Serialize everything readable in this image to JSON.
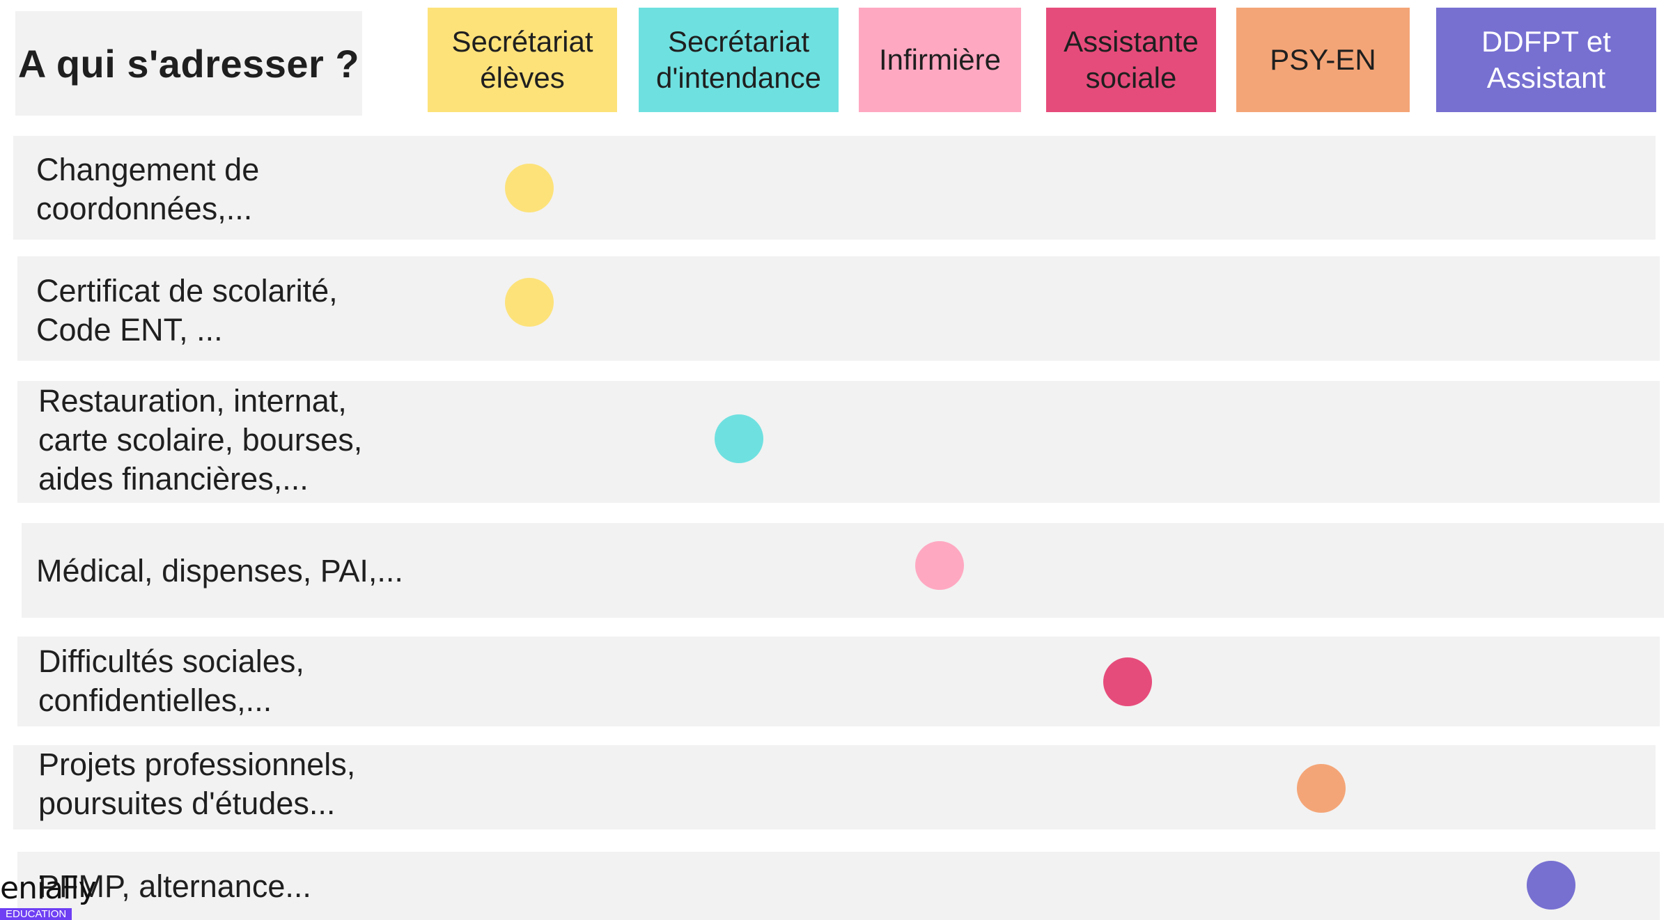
{
  "title": "A qui s'adresser ?",
  "columns": [
    {
      "label": "Secrétariat\nélèves",
      "color": "#fde27a",
      "text_color": "#1f1f1f"
    },
    {
      "label": "Secrétariat\nd'intendance",
      "color": "#6fe0e0",
      "text_color": "#1f1f1f"
    },
    {
      "label": "Infirmière",
      "color": "#ffa8c2",
      "text_color": "#1f1f1f"
    },
    {
      "label": "Assistante\nsociale",
      "color": "#e64c7b",
      "text_color": "#1f1f1f"
    },
    {
      "label": "PSY-EN",
      "color": "#f4a577",
      "text_color": "#1f1f1f"
    },
    {
      "label": "DDFPT et\nAssistant",
      "color": "#7770d1",
      "text_color": "#ffffff"
    }
  ],
  "rows": [
    {
      "label": "Changement de\ncoordonnées,...",
      "column": 0
    },
    {
      "label": "Certificat de scolarité,\nCode ENT, ...",
      "column": 0
    },
    {
      "label": "Restauration, internat,\ncarte scolaire, bourses,\naides financières,...",
      "column": 1
    },
    {
      "label": "Médical, dispenses, PAI,...",
      "column": 2
    },
    {
      "label": "Difficultés sociales,\nconfidentielles,...",
      "column": 3
    },
    {
      "label": "Projets professionnels,\npoursuites d'études...",
      "column": 4
    },
    {
      "label": "PFMP, alternance...",
      "column": 5
    }
  ],
  "brand": {
    "name": "enially",
    "tag": "EDUCATION"
  }
}
